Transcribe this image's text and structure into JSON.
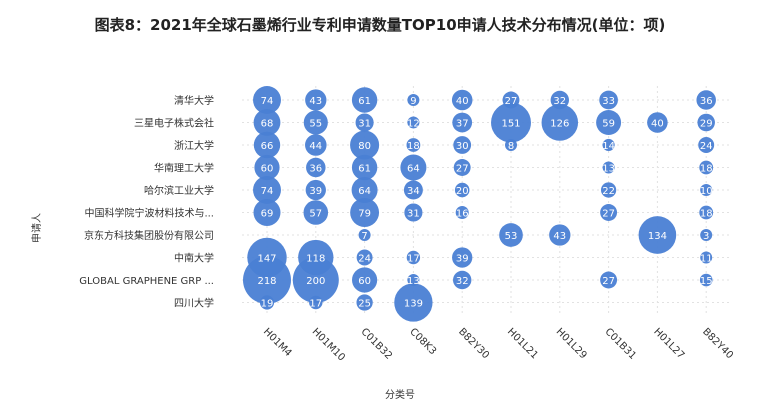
{
  "title": "图表8：2021年全球石墨烯行业专利申请数量TOP10申请人技术分布情况(单位：项)",
  "chart_data": {
    "type": "scatter",
    "title": "图表8：2021年全球石墨烯行业专利申请数量TOP10申请人技术分布情况(单位：项)",
    "xlabel": "分类号",
    "ylabel": "申请人",
    "x_categories": [
      "H01M4",
      "H01M10",
      "C01B32",
      "C08K3",
      "B82Y30",
      "H01L21",
      "H01L29",
      "C01B31",
      "H01L27",
      "B82Y40"
    ],
    "y_categories": [
      "清华大学",
      "三星电子株式会社",
      "浙江大学",
      "华南理工大学",
      "哈尔滨工业大学",
      "中国科学院宁波材料技术与...",
      "京东方科技集团股份有限公司",
      "中南大学",
      "GLOBAL GRAPHENE GRP ...",
      "四川大学"
    ],
    "grid": true,
    "points": [
      {
        "y": "清华大学",
        "x": "H01M4",
        "value": 74
      },
      {
        "y": "清华大学",
        "x": "H01M10",
        "value": 43
      },
      {
        "y": "清华大学",
        "x": "C01B32",
        "value": 61
      },
      {
        "y": "清华大学",
        "x": "C08K3",
        "value": 9
      },
      {
        "y": "清华大学",
        "x": "B82Y30",
        "value": 40
      },
      {
        "y": "清华大学",
        "x": "H01L21",
        "value": 27
      },
      {
        "y": "清华大学",
        "x": "H01L29",
        "value": 32
      },
      {
        "y": "清华大学",
        "x": "C01B31",
        "value": 33
      },
      {
        "y": "清华大学",
        "x": "B82Y40",
        "value": 36
      },
      {
        "y": "三星电子株式会社",
        "x": "H01M4",
        "value": 68
      },
      {
        "y": "三星电子株式会社",
        "x": "H01M10",
        "value": 55
      },
      {
        "y": "三星电子株式会社",
        "x": "C01B32",
        "value": 31
      },
      {
        "y": "三星电子株式会社",
        "x": "C08K3",
        "value": 12
      },
      {
        "y": "三星电子株式会社",
        "x": "B82Y30",
        "value": 37
      },
      {
        "y": "三星电子株式会社",
        "x": "H01L21",
        "value": 151
      },
      {
        "y": "三星电子株式会社",
        "x": "H01L29",
        "value": 126
      },
      {
        "y": "三星电子株式会社",
        "x": "C01B31",
        "value": 59
      },
      {
        "y": "三星电子株式会社",
        "x": "H01L27",
        "value": 40
      },
      {
        "y": "三星电子株式会社",
        "x": "B82Y40",
        "value": 29
      },
      {
        "y": "浙江大学",
        "x": "H01M4",
        "value": 66
      },
      {
        "y": "浙江大学",
        "x": "H01M10",
        "value": 44
      },
      {
        "y": "浙江大学",
        "x": "C01B32",
        "value": 80
      },
      {
        "y": "浙江大学",
        "x": "C08K3",
        "value": 18
      },
      {
        "y": "浙江大学",
        "x": "B82Y30",
        "value": 30
      },
      {
        "y": "浙江大学",
        "x": "H01L21",
        "value": 8
      },
      {
        "y": "浙江大学",
        "x": "C01B31",
        "value": 14
      },
      {
        "y": "浙江大学",
        "x": "B82Y40",
        "value": 24
      },
      {
        "y": "华南理工大学",
        "x": "H01M4",
        "value": 60
      },
      {
        "y": "华南理工大学",
        "x": "H01M10",
        "value": 36
      },
      {
        "y": "华南理工大学",
        "x": "C01B32",
        "value": 61
      },
      {
        "y": "华南理工大学",
        "x": "C08K3",
        "value": 64
      },
      {
        "y": "华南理工大学",
        "x": "B82Y30",
        "value": 27
      },
      {
        "y": "华南理工大学",
        "x": "C01B31",
        "value": 13
      },
      {
        "y": "华南理工大学",
        "x": "B82Y40",
        "value": 18
      },
      {
        "y": "哈尔滨工业大学",
        "x": "H01M4",
        "value": 74
      },
      {
        "y": "哈尔滨工业大学",
        "x": "H01M10",
        "value": 39
      },
      {
        "y": "哈尔滨工业大学",
        "x": "C01B32",
        "value": 64
      },
      {
        "y": "哈尔滨工业大学",
        "x": "C08K3",
        "value": 34
      },
      {
        "y": "哈尔滨工业大学",
        "x": "B82Y30",
        "value": 20
      },
      {
        "y": "哈尔滨工业大学",
        "x": "C01B31",
        "value": 22
      },
      {
        "y": "哈尔滨工业大学",
        "x": "B82Y40",
        "value": 10
      },
      {
        "y": "中国科学院宁波材料技术与...",
        "x": "H01M4",
        "value": 69
      },
      {
        "y": "中国科学院宁波材料技术与...",
        "x": "H01M10",
        "value": 57
      },
      {
        "y": "中国科学院宁波材料技术与...",
        "x": "C01B32",
        "value": 79
      },
      {
        "y": "中国科学院宁波材料技术与...",
        "x": "C08K3",
        "value": 31
      },
      {
        "y": "中国科学院宁波材料技术与...",
        "x": "B82Y30",
        "value": 16
      },
      {
        "y": "中国科学院宁波材料技术与...",
        "x": "C01B31",
        "value": 27
      },
      {
        "y": "中国科学院宁波材料技术与...",
        "x": "B82Y40",
        "value": 18
      },
      {
        "y": "京东方科技集团股份有限公司",
        "x": "C01B32",
        "value": 7
      },
      {
        "y": "京东方科技集团股份有限公司",
        "x": "H01L21",
        "value": 53
      },
      {
        "y": "京东方科技集团股份有限公司",
        "x": "H01L29",
        "value": 43
      },
      {
        "y": "京东方科技集团股份有限公司",
        "x": "H01L27",
        "value": 134
      },
      {
        "y": "京东方科技集团股份有限公司",
        "x": "B82Y40",
        "value": 3
      },
      {
        "y": "中南大学",
        "x": "H01M4",
        "value": 147
      },
      {
        "y": "中南大学",
        "x": "H01M10",
        "value": 118
      },
      {
        "y": "中南大学",
        "x": "C01B32",
        "value": 24
      },
      {
        "y": "中南大学",
        "x": "C08K3",
        "value": 17
      },
      {
        "y": "中南大学",
        "x": "B82Y30",
        "value": 39
      },
      {
        "y": "中南大学",
        "x": "B82Y40",
        "value": 11
      },
      {
        "y": "GLOBAL GRAPHENE GRP ...",
        "x": "H01M4",
        "value": 218
      },
      {
        "y": "GLOBAL GRAPHENE GRP ...",
        "x": "H01M10",
        "value": 200
      },
      {
        "y": "GLOBAL GRAPHENE GRP ...",
        "x": "C01B32",
        "value": 60
      },
      {
        "y": "GLOBAL GRAPHENE GRP ...",
        "x": "C08K3",
        "value": 13
      },
      {
        "y": "GLOBAL GRAPHENE GRP ...",
        "x": "B82Y30",
        "value": 32
      },
      {
        "y": "GLOBAL GRAPHENE GRP ...",
        "x": "C01B31",
        "value": 27
      },
      {
        "y": "GLOBAL GRAPHENE GRP ...",
        "x": "B82Y40",
        "value": 15
      },
      {
        "y": "四川大学",
        "x": "H01M4",
        "value": 19
      },
      {
        "y": "四川大学",
        "x": "H01M10",
        "value": 17
      },
      {
        "y": "四川大学",
        "x": "C01B32",
        "value": 25
      },
      {
        "y": "四川大学",
        "x": "C08K3",
        "value": 139
      }
    ]
  },
  "colors": {
    "bubble": "#4a7fd4",
    "bubble_label": "#ffffff",
    "grid": "#e2e2e2",
    "text": "#333333"
  }
}
